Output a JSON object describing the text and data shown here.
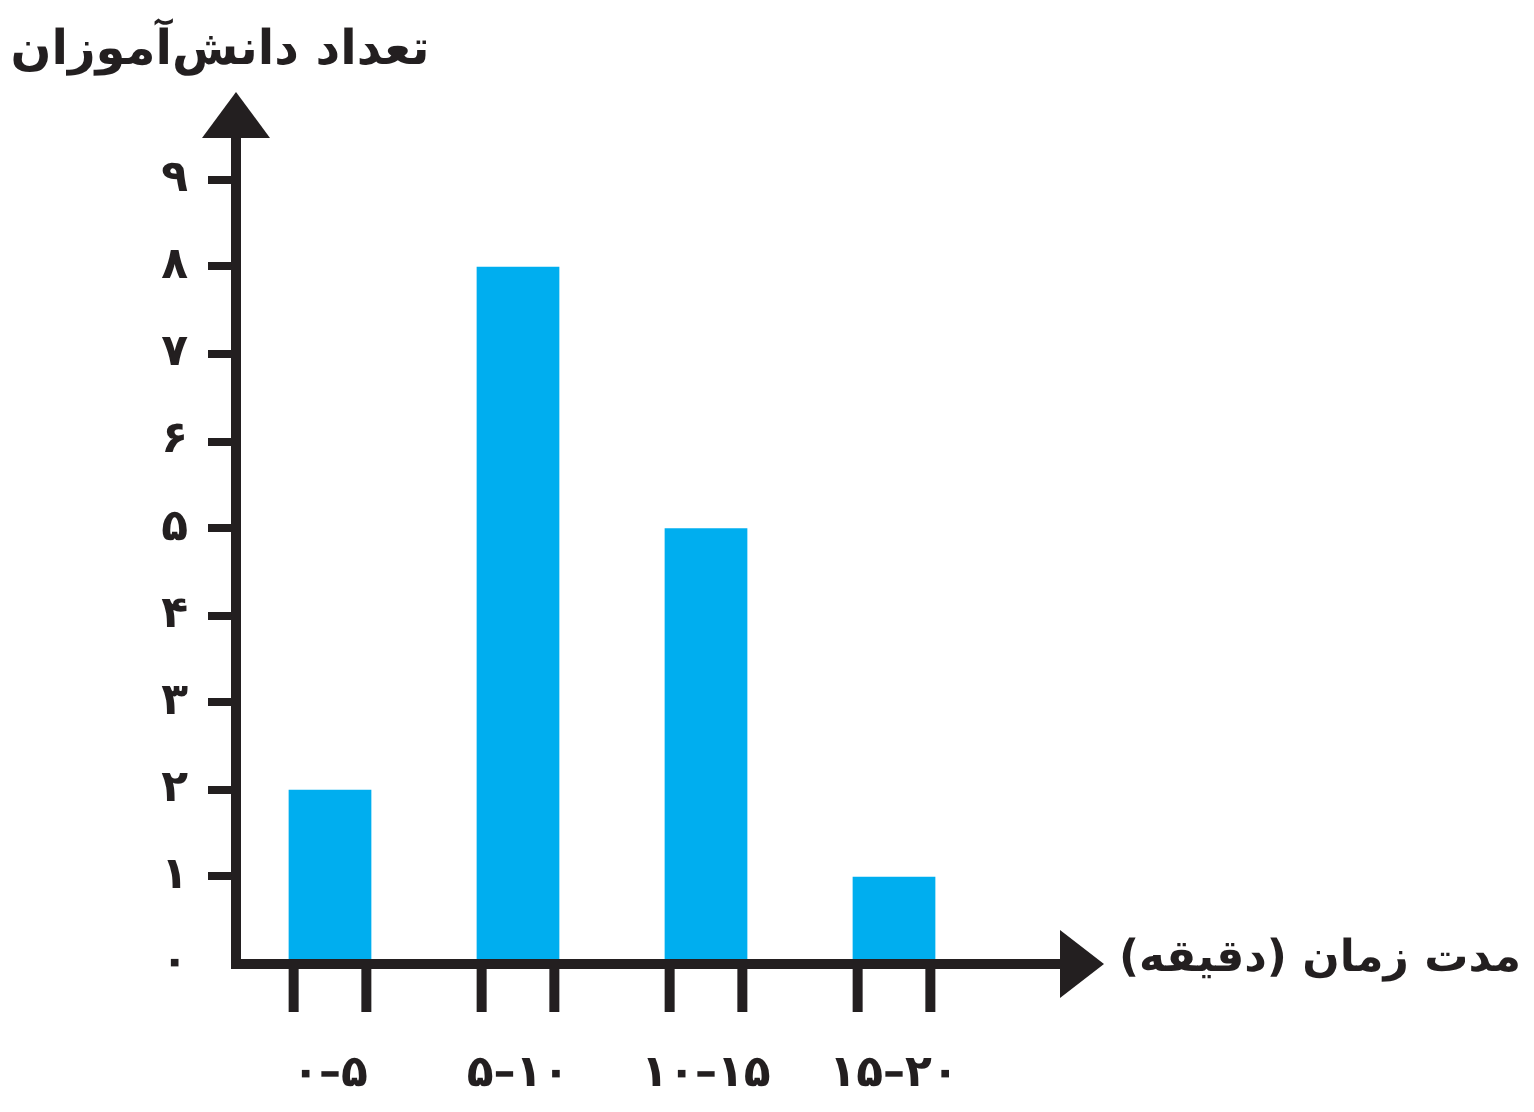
{
  "chart_data": {
    "type": "bar",
    "xlabel": "مدت زمان (دقیقه)",
    "ylabel": "تعداد دانش‌آموزان",
    "categories": [
      "۰–۵",
      "۵–۱۰",
      "۱۰–۱۵",
      "۱۵–۲۰"
    ],
    "values": [
      2,
      8,
      5,
      1
    ],
    "color": "#00aeef",
    "ylim": [
      0,
      9.5
    ],
    "yticks": [
      {
        "value": 0,
        "label": "۰"
      },
      {
        "value": 1,
        "label": "۱"
      },
      {
        "value": 2,
        "label": "۲"
      },
      {
        "value": 3,
        "label": "۳"
      },
      {
        "value": 4,
        "label": "۴"
      },
      {
        "value": 5,
        "label": "۵"
      },
      {
        "value": 6,
        "label": "۶"
      },
      {
        "value": 7,
        "label": "۷"
      },
      {
        "value": 8,
        "label": "۸"
      },
      {
        "value": 9,
        "label": "۹"
      }
    ]
  }
}
